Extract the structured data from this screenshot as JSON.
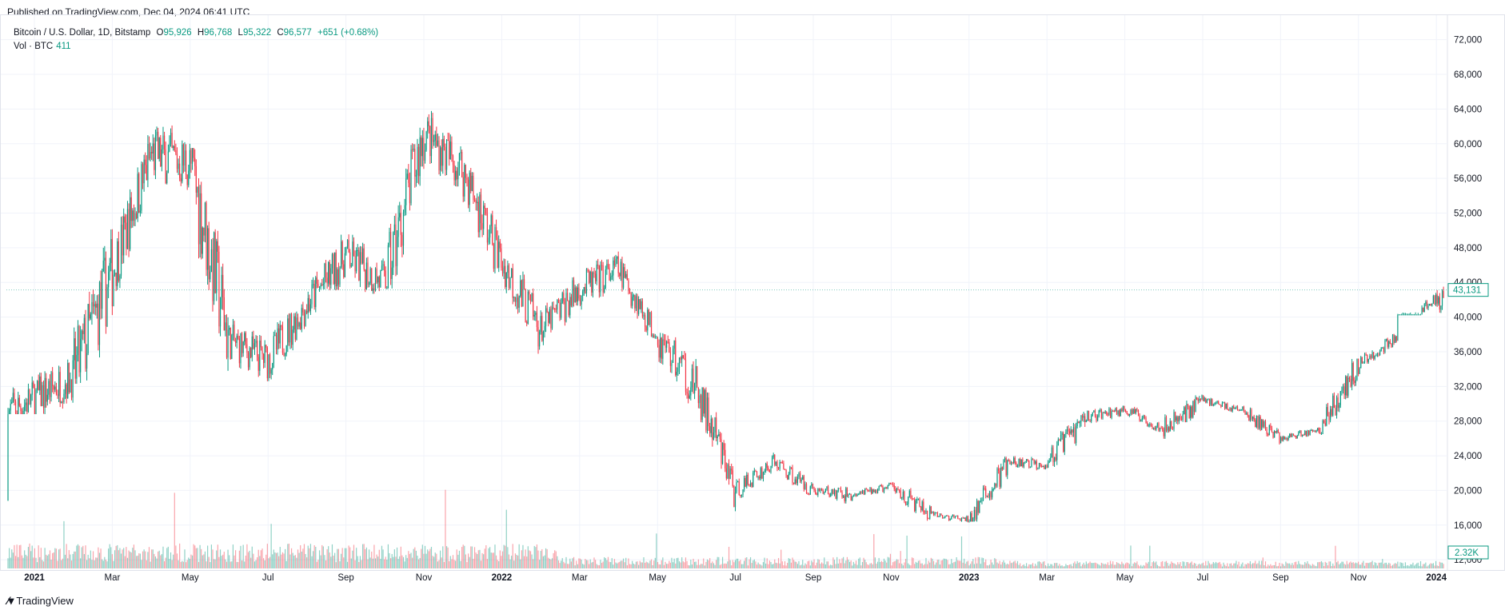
{
  "published": "Published on TradingView.com, Dec 04, 2024 06:41 UTC",
  "legend": {
    "symbol": "Bitcoin / U.S. Dollar, 1D, Bitstamp",
    "o_label": "O",
    "o_value": "95,926",
    "h_label": "H",
    "h_value": "96,768",
    "l_label": "L",
    "l_value": "95,322",
    "c_label": "C",
    "c_value": "96,577",
    "change": "+651 (+0.68%)"
  },
  "volume_legend": {
    "label": "Vol · BTC",
    "value": "411"
  },
  "footer": {
    "brand": "TradingView"
  },
  "colors": {
    "up": "#089981",
    "down": "#f23645",
    "grid": "#f0f3fa",
    "text": "#131722"
  },
  "chart_data": {
    "type": "line",
    "subtype": "candlestick-with-volume",
    "y_axis": {
      "min": 11000,
      "max": 74000,
      "ticks": [
        "12,000",
        "16,000",
        "20,000",
        "24,000",
        "28,000",
        "32,000",
        "36,000",
        "40,000",
        "44,000",
        "48,000",
        "52,000",
        "56,000",
        "60,000",
        "64,000",
        "68,000",
        "72,000"
      ],
      "tick_values": [
        12000,
        16000,
        20000,
        24000,
        28000,
        32000,
        36000,
        40000,
        44000,
        48000,
        52000,
        56000,
        60000,
        64000,
        68000,
        72000
      ]
    },
    "x_axis": {
      "labels": [
        {
          "text": "2021",
          "month_index": 0,
          "bold": true
        },
        {
          "text": "Mar",
          "month_index": 2
        },
        {
          "text": "May",
          "month_index": 4
        },
        {
          "text": "Jul",
          "month_index": 6
        },
        {
          "text": "Sep",
          "month_index": 8
        },
        {
          "text": "Nov",
          "month_index": 10
        },
        {
          "text": "2022",
          "month_index": 12,
          "bold": true
        },
        {
          "text": "Mar",
          "month_index": 14
        },
        {
          "text": "May",
          "month_index": 16
        },
        {
          "text": "Jul",
          "month_index": 18
        },
        {
          "text": "Sep",
          "month_index": 20
        },
        {
          "text": "Nov",
          "month_index": 22
        },
        {
          "text": "2023",
          "month_index": 24,
          "bold": true
        },
        {
          "text": "Mar",
          "month_index": 26
        },
        {
          "text": "May",
          "month_index": 28
        },
        {
          "text": "Jul",
          "month_index": 30
        },
        {
          "text": "Sep",
          "month_index": 32
        },
        {
          "text": "Nov",
          "month_index": 34
        },
        {
          "text": "2024",
          "month_index": 36,
          "bold": true
        }
      ]
    },
    "price_label": "43,131",
    "price_label_value": 43131,
    "volume_label": "2.32K",
    "months": [
      "2020-12",
      "2021-01",
      "2021-02",
      "2021-03",
      "2021-04",
      "2021-05",
      "2021-06",
      "2021-07",
      "2021-08",
      "2021-09",
      "2021-10",
      "2021-11",
      "2021-12",
      "2022-01",
      "2022-02",
      "2022-03",
      "2022-04",
      "2022-05",
      "2022-06",
      "2022-07",
      "2022-08",
      "2022-09",
      "2022-10",
      "2022-11",
      "2022-12",
      "2023-01",
      "2023-02",
      "2023-03",
      "2023-04",
      "2023-05",
      "2023-06",
      "2023-07",
      "2023-08",
      "2023-09",
      "2023-10",
      "2023-11",
      "2023-12",
      "2024-01"
    ],
    "monthly_close": [
      29000,
      33100,
      45200,
      58800,
      57700,
      37300,
      35000,
      41500,
      47100,
      43800,
      61300,
      57000,
      46300,
      38500,
      43200,
      45500,
      37700,
      31800,
      19900,
      23300,
      20000,
      19400,
      20500,
      17200,
      16600,
      23100,
      23100,
      28500,
      29300,
      27200,
      30500,
      29200,
      26000,
      27000,
      34500,
      37700,
      42300,
      43131
    ],
    "monthly_high": [
      29300,
      41900,
      58300,
      61800,
      64800,
      59500,
      41300,
      42400,
      50500,
      52900,
      66900,
      69000,
      59000,
      47900,
      45800,
      48200,
      47400,
      40000,
      31900,
      24600,
      25200,
      22700,
      20900,
      21400,
      18400,
      23900,
      25200,
      29200,
      30900,
      29800,
      31400,
      31800,
      30100,
      27500,
      35200,
      38400,
      44700,
      49000
    ],
    "monthly_low": [
      18600,
      28800,
      32300,
      43000,
      47000,
      30000,
      28800,
      29300,
      37300,
      39600,
      43300,
      53500,
      42000,
      32900,
      34300,
      37200,
      37600,
      25400,
      17600,
      18800,
      19500,
      18200,
      18200,
      15500,
      16300,
      16400,
      21400,
      19600,
      27000,
      25800,
      24800,
      28900,
      25300,
      24900,
      26500,
      34100,
      40300,
      40100
    ],
    "series": [
      {
        "name": "Bitcoin / U.S. Dollar",
        "values": [
          29000,
          33100,
          45200,
          58800,
          57700,
          37300,
          35000,
          41500,
          47100,
          43800,
          61300,
          57000,
          46300,
          38500,
          43200,
          45500,
          37700,
          31800,
          19900,
          23300,
          20000,
          19400,
          20500,
          17200,
          16600,
          23100,
          23100,
          28500,
          29300,
          27200,
          30500,
          29200,
          26000,
          27000,
          34500,
          37700,
          42300,
          43131
        ]
      }
    ]
  }
}
